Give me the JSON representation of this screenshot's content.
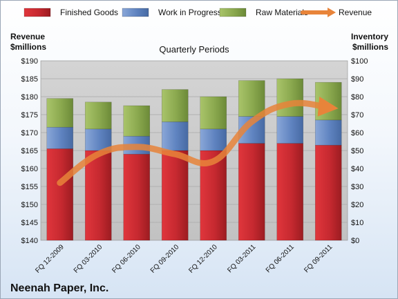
{
  "chart_data": {
    "type": "bar",
    "subtype": "stacked-bar-with-line",
    "subtitle": "Quarterly Periods",
    "company": "Neenah Paper, Inc.",
    "categories": [
      "FQ 12-2009",
      "FQ 03-2010",
      "FQ 06-2010",
      "FQ 09-2010",
      "FQ 12-2010",
      "FQ 03-2011",
      "FQ 06-2011",
      "FQ 09-2011"
    ],
    "series": [
      {
        "name": "Finished Goods",
        "axis": "right",
        "color": "#c0282d",
        "values": [
          51,
          50,
          48,
          50,
          50,
          54,
          54,
          53
        ]
      },
      {
        "name": "Work in Progress",
        "axis": "right",
        "color": "#5a7fbd",
        "values": [
          12,
          12,
          10,
          16,
          12,
          15,
          15,
          14
        ]
      },
      {
        "name": "Raw Materials",
        "axis": "right",
        "color": "#8aa84e",
        "values": [
          16,
          15,
          17,
          18,
          18,
          20,
          21,
          21
        ]
      },
      {
        "name": "Revenue",
        "axis": "left",
        "type": "line",
        "color": "#e8843a",
        "values": [
          156,
          164,
          166,
          164,
          162,
          173,
          178,
          177
        ]
      }
    ],
    "left_axis": {
      "label": "Revenue $millions",
      "min": 140,
      "max": 190,
      "step": 5,
      "prefix": "$"
    },
    "right_axis": {
      "label": "Inventory $millions",
      "min": 0,
      "max": 100,
      "step": 10,
      "prefix": "$"
    },
    "legend_position": "top",
    "grid": true
  }
}
